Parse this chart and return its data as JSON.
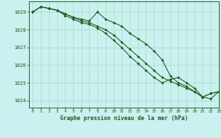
{
  "title": "Graphe pression niveau de la mer (hPa)",
  "bg_color": "#caf0f0",
  "grid_color": "#aaddcc",
  "line_color": "#1a5c1a",
  "marker_color": "#1a5c1a",
  "xlim": [
    -0.5,
    23
  ],
  "ylim": [
    1023.6,
    1029.6
  ],
  "yticks": [
    1024,
    1025,
    1026,
    1027,
    1028,
    1029
  ],
  "xticks": [
    0,
    1,
    2,
    3,
    4,
    5,
    6,
    7,
    8,
    9,
    10,
    11,
    12,
    13,
    14,
    15,
    16,
    17,
    18,
    19,
    20,
    21,
    22,
    23
  ],
  "series1": [
    1029.0,
    1029.3,
    1029.2,
    1029.1,
    1028.9,
    1028.7,
    1028.6,
    1028.5,
    1029.0,
    1028.6,
    1028.4,
    1028.2,
    1027.8,
    1027.5,
    1027.2,
    1026.8,
    1026.3,
    1025.4,
    1025.0,
    1024.8,
    1024.5,
    1024.2,
    1024.4,
    1024.5
  ],
  "series2": [
    1029.0,
    1029.3,
    1029.2,
    1029.1,
    1028.8,
    1028.6,
    1028.4,
    1028.3,
    1028.1,
    1027.8,
    1027.4,
    1027.0,
    1026.5,
    1026.1,
    1025.7,
    1025.3,
    1025.0,
    1025.2,
    1025.3,
    1025.0,
    1024.7,
    1024.2,
    1024.4,
    1024.5
  ],
  "series3": [
    1029.0,
    1029.3,
    1029.2,
    1029.1,
    1028.9,
    1028.7,
    1028.5,
    1028.4,
    1028.2,
    1028.0,
    1027.7,
    1027.3,
    1026.9,
    1026.5,
    1026.1,
    1025.7,
    1025.3,
    1025.1,
    1024.9,
    1024.7,
    1024.5,
    1024.2,
    1024.1,
    1024.5
  ]
}
